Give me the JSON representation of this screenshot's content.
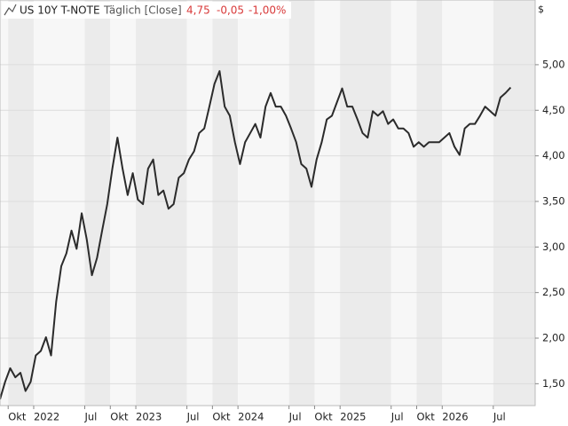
{
  "chart_data": {
    "type": "line",
    "title": "US 10Y T-NOTE",
    "subtitle": "Täglich [Close]",
    "annotations": [
      "4,75",
      "-0,05",
      "-1,00%"
    ],
    "y_unit": "$",
    "color": "#2b2b2b",
    "annotation_color": "#d83a3a",
    "band_colors": [
      "#f7f7f7",
      "#ebebeb"
    ],
    "grid": true,
    "x": [
      2021.67,
      2021.72,
      2021.77,
      2021.82,
      2021.87,
      2021.92,
      2021.97,
      2022.02,
      2022.07,
      2022.12,
      2022.17,
      2022.22,
      2022.27,
      2022.32,
      2022.37,
      2022.42,
      2022.47,
      2022.52,
      2022.57,
      2022.62,
      2022.67,
      2022.72,
      2022.77,
      2022.82,
      2022.87,
      2022.92,
      2022.97,
      2023.02,
      2023.07,
      2023.12,
      2023.17,
      2023.22,
      2023.27,
      2023.32,
      2023.37,
      2023.42,
      2023.47,
      2023.52,
      2023.57,
      2023.62,
      2023.67,
      2023.72,
      2023.77,
      2023.82,
      2023.87,
      2023.92,
      2023.97,
      2024.02,
      2024.07,
      2024.12,
      2024.17,
      2024.22,
      2024.27,
      2024.32,
      2024.37,
      2024.42,
      2024.47,
      2024.52,
      2024.57,
      2024.62,
      2024.67,
      2024.72,
      2024.77,
      2024.82,
      2024.87,
      2024.92,
      2024.97,
      2025.02,
      2025.07,
      2025.12,
      2025.17,
      2025.22,
      2025.27,
      2025.32,
      2025.37,
      2025.42,
      2025.47,
      2025.52,
      2025.57,
      2025.62,
      2025.67,
      2025.72,
      2025.77,
      2025.82,
      2025.87,
      2025.92,
      2025.97,
      2026.02,
      2026.07,
      2026.12,
      2026.17,
      2026.22,
      2026.27,
      2026.32,
      2026.37,
      2026.42,
      2026.47,
      2026.52,
      2026.57,
      2026.62,
      2026.67
    ],
    "values": [
      1.33,
      1.52,
      1.67,
      1.57,
      1.62,
      1.42,
      1.52,
      1.81,
      1.86,
      2.01,
      1.81,
      2.4,
      2.79,
      2.93,
      3.18,
      2.98,
      3.37,
      3.08,
      2.69,
      2.88,
      3.18,
      3.47,
      3.86,
      4.2,
      3.86,
      3.57,
      3.81,
      3.52,
      3.47,
      3.86,
      3.96,
      3.57,
      3.62,
      3.42,
      3.47,
      3.76,
      3.81,
      3.96,
      4.05,
      4.25,
      4.3,
      4.54,
      4.79,
      4.93,
      4.54,
      4.44,
      4.15,
      3.91,
      4.15,
      4.25,
      4.35,
      4.2,
      4.54,
      4.69,
      4.54,
      4.54,
      4.44,
      4.3,
      4.15,
      3.91,
      3.86,
      3.66,
      3.96,
      4.15,
      4.4,
      4.44,
      4.59,
      4.74,
      4.54,
      4.54,
      4.4,
      4.25,
      4.2,
      4.49,
      4.44,
      4.49,
      4.35,
      4.4,
      4.3,
      4.3,
      4.25,
      4.1,
      4.15,
      4.1,
      4.15,
      4.15,
      4.15,
      4.2,
      4.25,
      4.1,
      4.01,
      4.3,
      4.35,
      4.35,
      4.44,
      4.54,
      4.49,
      4.44,
      4.64,
      4.69,
      4.75
    ],
    "xlim": [
      2021.67,
      2026.91
    ],
    "xticks": [
      {
        "value": 2021.75,
        "label": "Okt"
      },
      {
        "value": 2022,
        "label": "2022"
      },
      {
        "value": 2022.5,
        "label": "Jul"
      },
      {
        "value": 2022.75,
        "label": "Okt"
      },
      {
        "value": 2023,
        "label": "2023"
      },
      {
        "value": 2023.5,
        "label": "Jul"
      },
      {
        "value": 2023.75,
        "label": "Okt"
      },
      {
        "value": 2024,
        "label": "2024"
      },
      {
        "value": 2024.5,
        "label": "Jul"
      },
      {
        "value": 2024.75,
        "label": "Okt"
      },
      {
        "value": 2025,
        "label": "2025"
      },
      {
        "value": 2025.5,
        "label": "Jul"
      },
      {
        "value": 2025.75,
        "label": "Okt"
      },
      {
        "value": 2026,
        "label": "2026"
      },
      {
        "value": 2026.5,
        "label": "Jul"
      }
    ],
    "ylim": [
      1.26,
      5.71
    ],
    "yticks": [
      {
        "value": 1.5,
        "label": "1,50"
      },
      {
        "value": 2,
        "label": "2,00"
      },
      {
        "value": 2.5,
        "label": "2,50"
      },
      {
        "value": 3,
        "label": "3,00"
      },
      {
        "value": 3.5,
        "label": "3,50"
      },
      {
        "value": 4,
        "label": "4,00"
      },
      {
        "value": 4.5,
        "label": "4,50"
      },
      {
        "value": 5,
        "label": "5,00"
      }
    ]
  }
}
